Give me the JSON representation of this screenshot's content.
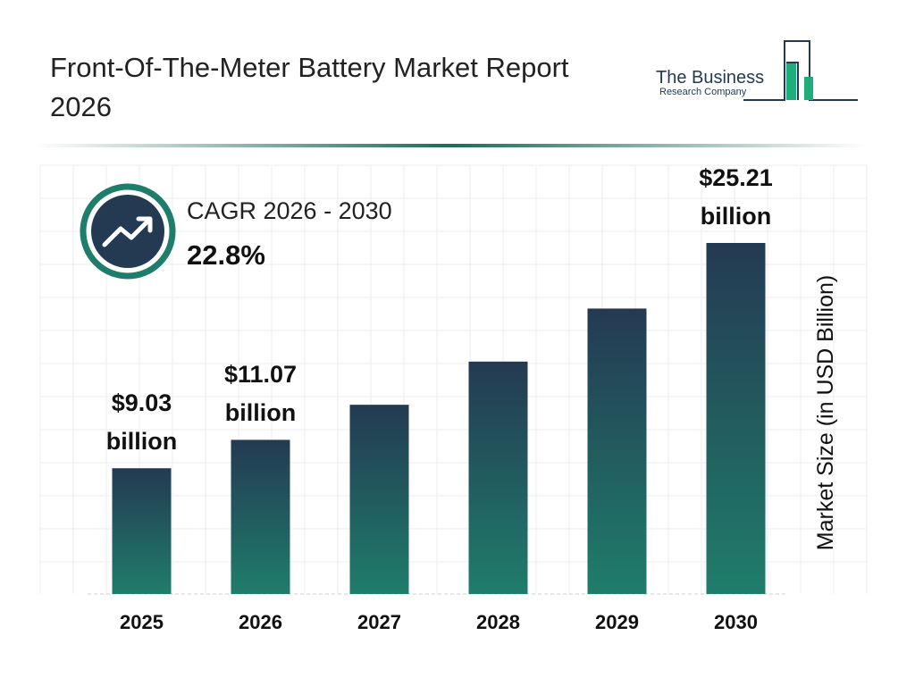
{
  "chart_data": {
    "type": "bar",
    "title": "Front-Of-The-Meter Battery Market Report 2026",
    "cagr_label": "CAGR 2026 - 2030",
    "cagr_value": "22.8%",
    "ylabel": "Market Size (in USD Billion)",
    "categories": [
      "2025",
      "2026",
      "2027",
      "2028",
      "2029",
      "2030"
    ],
    "values": [
      9.03,
      11.07,
      13.59,
      16.69,
      20.5,
      25.21
    ],
    "value_labels": [
      "$9.03 billion",
      "$11.07 billion",
      null,
      null,
      null,
      "$25.21 billion"
    ],
    "color": "#243a52"
  },
  "logo": {
    "line1": "The Business",
    "line2": "Research Company"
  }
}
